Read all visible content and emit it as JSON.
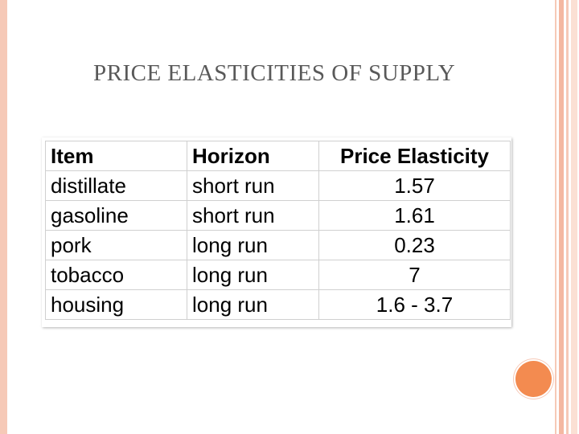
{
  "slide": {
    "title": "PRICE ELASTICITIES OF SUPPLY"
  },
  "table": {
    "headers": [
      "Item",
      "Horizon",
      "Price Elasticity"
    ],
    "rows": [
      [
        "distillate",
        "short run",
        "1.57"
      ],
      [
        "gasoline",
        "short run",
        "1.61"
      ],
      [
        "pork",
        "long run",
        "0.23"
      ],
      [
        "tobacco",
        "long run",
        "7"
      ],
      [
        "housing",
        "long run",
        "1.6 - 3.7"
      ]
    ]
  },
  "colors": {
    "border_peach": "#f6c9b7",
    "accent_orange": "#f38b50",
    "title_gray": "#595959"
  }
}
